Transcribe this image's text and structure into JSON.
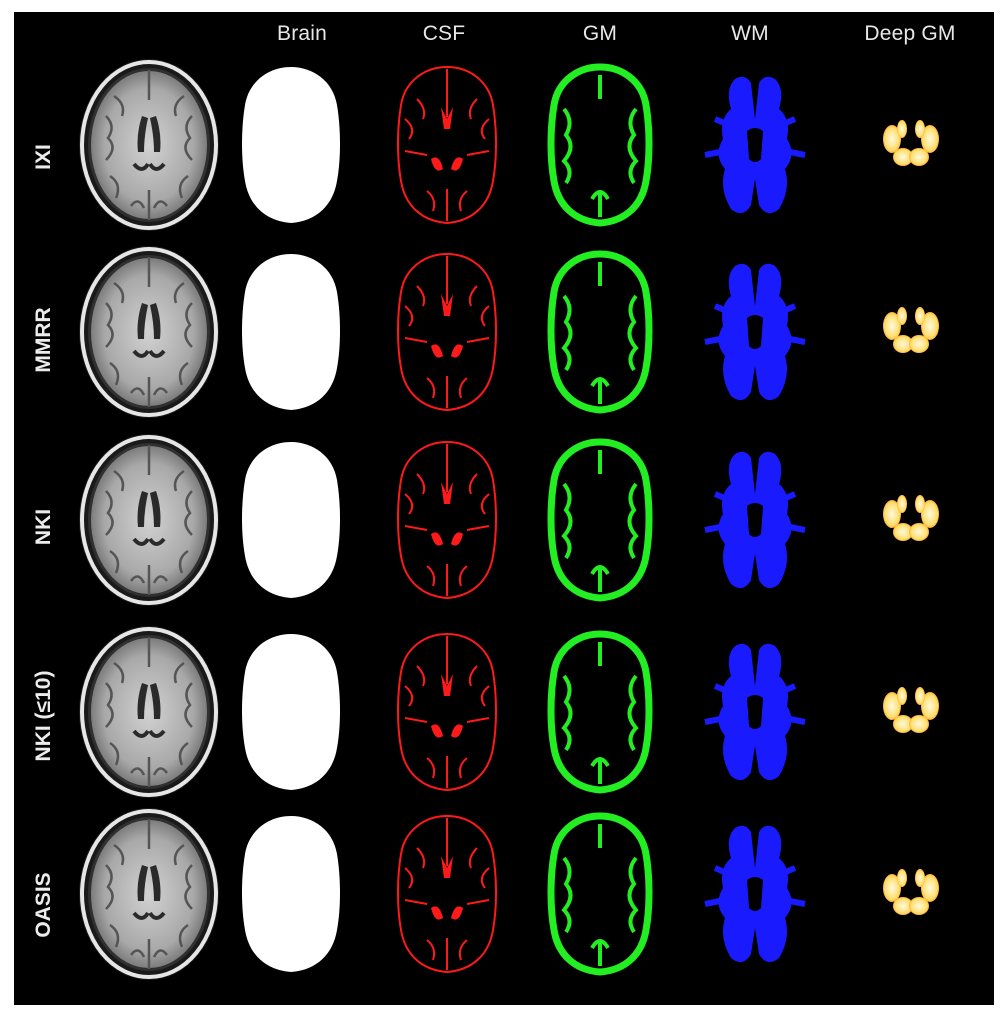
{
  "columns": [
    "Brain",
    "CSF",
    "GM",
    "WM",
    "Deep GM"
  ],
  "rows": [
    "IXI",
    "MMRR",
    "NKI",
    "NKI (≤10)",
    "OASIS"
  ],
  "colors": {
    "background": "#000000",
    "csf": "#ff1a1a",
    "gm": "#22ee22",
    "wm": "#1a1aff",
    "deep_gm": "#ffe070",
    "deep_gm_edge": "#ff8c00",
    "brain_mask": "#ffffff"
  }
}
